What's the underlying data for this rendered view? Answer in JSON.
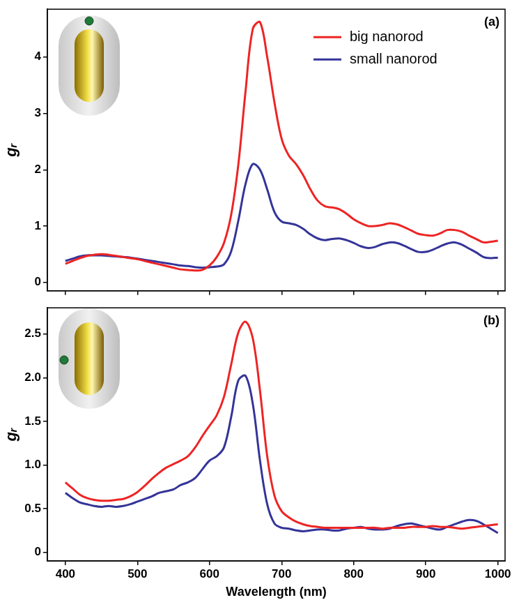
{
  "chart_data": [
    {
      "type": "line",
      "label": "(a)",
      "y_label": "gᵣ",
      "x": [
        400,
        410,
        420,
        430,
        440,
        450,
        460,
        470,
        480,
        490,
        500,
        510,
        520,
        530,
        540,
        550,
        560,
        570,
        580,
        590,
        600,
        610,
        620,
        630,
        640,
        650,
        660,
        670,
        680,
        690,
        700,
        710,
        720,
        730,
        740,
        750,
        760,
        770,
        780,
        790,
        800,
        810,
        820,
        830,
        840,
        850,
        860,
        870,
        880,
        890,
        900,
        910,
        920,
        930,
        940,
        950,
        960,
        970,
        980,
        990,
        1000
      ],
      "series": [
        {
          "name": "big nanorod",
          "color": "#ee2424",
          "values": [
            0.33,
            0.38,
            0.43,
            0.47,
            0.49,
            0.5,
            0.49,
            0.47,
            0.45,
            0.43,
            0.41,
            0.38,
            0.35,
            0.32,
            0.29,
            0.26,
            0.23,
            0.22,
            0.21,
            0.22,
            0.3,
            0.45,
            0.7,
            1.2,
            2.1,
            3.4,
            4.5,
            4.62,
            4.0,
            3.2,
            2.55,
            2.25,
            2.1,
            1.9,
            1.65,
            1.45,
            1.35,
            1.33,
            1.3,
            1.22,
            1.12,
            1.05,
            1.0,
            1.0,
            1.02,
            1.05,
            1.03,
            0.98,
            0.92,
            0.86,
            0.84,
            0.83,
            0.87,
            0.93,
            0.93,
            0.9,
            0.83,
            0.77,
            0.71,
            0.72,
            0.74
          ]
        },
        {
          "name": "small nanorod",
          "color": "#343499",
          "values": [
            0.38,
            0.42,
            0.46,
            0.48,
            0.48,
            0.48,
            0.47,
            0.46,
            0.45,
            0.44,
            0.42,
            0.4,
            0.38,
            0.36,
            0.34,
            0.32,
            0.3,
            0.29,
            0.27,
            0.26,
            0.27,
            0.28,
            0.32,
            0.55,
            1.1,
            1.75,
            2.1,
            2.0,
            1.65,
            1.25,
            1.08,
            1.05,
            1.02,
            0.95,
            0.85,
            0.78,
            0.75,
            0.77,
            0.78,
            0.75,
            0.7,
            0.64,
            0.61,
            0.63,
            0.68,
            0.71,
            0.7,
            0.65,
            0.59,
            0.54,
            0.54,
            0.58,
            0.64,
            0.69,
            0.71,
            0.67,
            0.6,
            0.53,
            0.45,
            0.43,
            0.44
          ]
        }
      ],
      "xlim": [
        375,
        1010
      ],
      "xticks": [
        400,
        500,
        600,
        700,
        800,
        900,
        1000
      ],
      "ylim": [
        -0.15,
        4.85
      ],
      "yticks": [
        0,
        1,
        2,
        3,
        4
      ],
      "grid": false,
      "legend": "upper right",
      "tick_labels": "y"
    },
    {
      "type": "line",
      "label": "(b)",
      "x_label": "Wavelength (nm)",
      "y_label": "gᵣ",
      "x": [
        400,
        410,
        420,
        430,
        440,
        450,
        460,
        470,
        480,
        490,
        500,
        510,
        520,
        530,
        540,
        550,
        560,
        570,
        580,
        590,
        600,
        610,
        620,
        630,
        640,
        650,
        660,
        670,
        680,
        690,
        700,
        710,
        720,
        730,
        740,
        750,
        760,
        770,
        780,
        790,
        800,
        810,
        820,
        830,
        840,
        850,
        860,
        870,
        880,
        890,
        900,
        910,
        920,
        930,
        940,
        950,
        960,
        970,
        980,
        990,
        1000
      ],
      "series": [
        {
          "name": "big nanorod",
          "color": "#ee2424",
          "values": [
            0.8,
            0.73,
            0.66,
            0.62,
            0.6,
            0.59,
            0.59,
            0.6,
            0.61,
            0.64,
            0.69,
            0.76,
            0.84,
            0.91,
            0.97,
            1.01,
            1.05,
            1.1,
            1.2,
            1.33,
            1.45,
            1.57,
            1.78,
            2.15,
            2.52,
            2.64,
            2.45,
            1.85,
            1.1,
            0.65,
            0.47,
            0.4,
            0.35,
            0.32,
            0.3,
            0.29,
            0.28,
            0.28,
            0.28,
            0.28,
            0.28,
            0.28,
            0.28,
            0.28,
            0.27,
            0.28,
            0.28,
            0.28,
            0.29,
            0.29,
            0.29,
            0.3,
            0.29,
            0.29,
            0.28,
            0.27,
            0.28,
            0.29,
            0.3,
            0.31,
            0.32
          ]
        },
        {
          "name": "small nanorod",
          "color": "#343499",
          "values": [
            0.68,
            0.62,
            0.57,
            0.55,
            0.53,
            0.52,
            0.53,
            0.52,
            0.53,
            0.55,
            0.58,
            0.61,
            0.64,
            0.68,
            0.7,
            0.72,
            0.77,
            0.8,
            0.85,
            0.95,
            1.05,
            1.1,
            1.2,
            1.55,
            1.97,
            2.02,
            1.7,
            1.05,
            0.55,
            0.33,
            0.28,
            0.27,
            0.25,
            0.24,
            0.25,
            0.26,
            0.26,
            0.25,
            0.25,
            0.27,
            0.28,
            0.29,
            0.27,
            0.26,
            0.26,
            0.27,
            0.3,
            0.32,
            0.33,
            0.31,
            0.29,
            0.27,
            0.26,
            0.29,
            0.32,
            0.35,
            0.37,
            0.36,
            0.32,
            0.27,
            0.22
          ]
        }
      ],
      "xlim": [
        375,
        1010
      ],
      "xticks": [
        400,
        500,
        600,
        700,
        800,
        900,
        1000
      ],
      "ylim": [
        -0.1,
        2.8
      ],
      "yticks": [
        0,
        0.5,
        {
          "value": 1,
          "label": "1.0"
        },
        1.5,
        {
          "value": 2,
          "label": "2.0"
        },
        2.5
      ],
      "grid": false
    }
  ]
}
